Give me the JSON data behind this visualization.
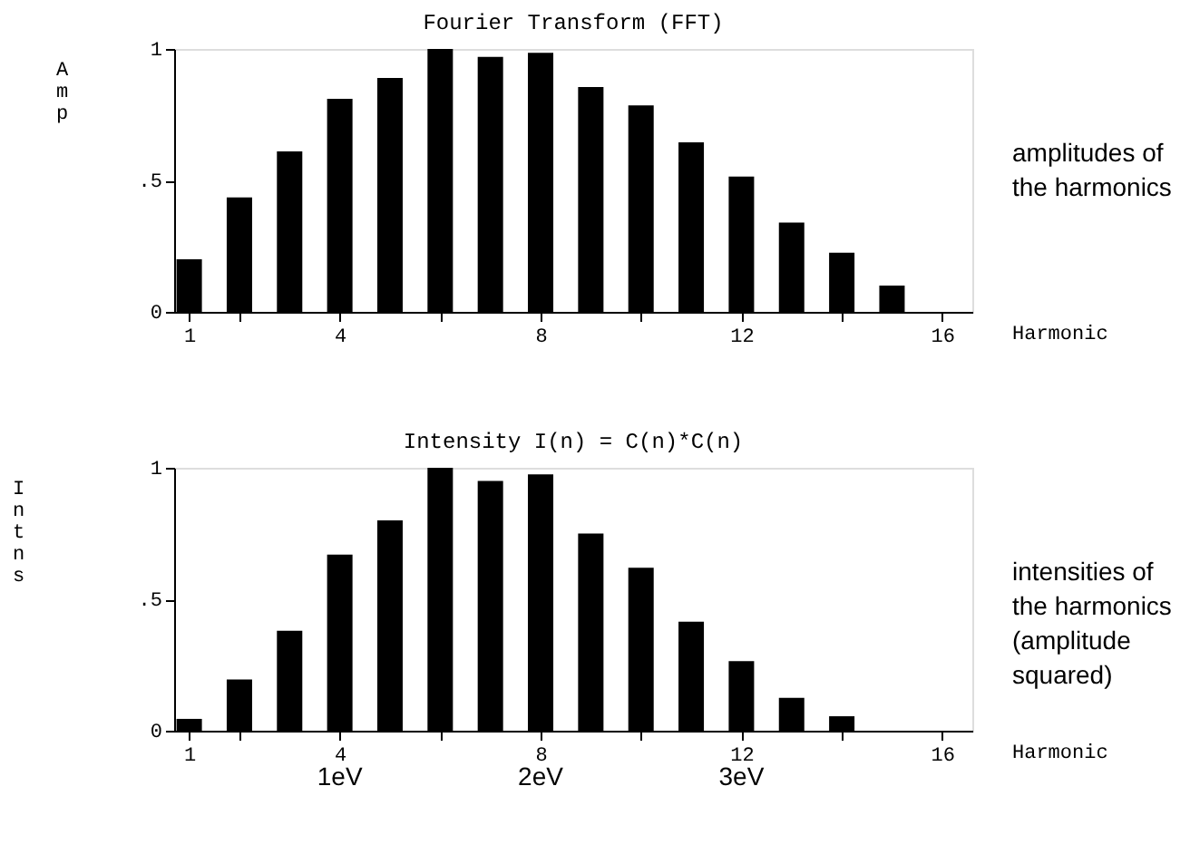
{
  "chart_data": [
    {
      "type": "bar",
      "title": "Fourier Transform  (FFT)",
      "xlabel": "Harmonic",
      "ylabel": "Amp",
      "color": "#000000",
      "x": [
        1,
        2,
        3,
        4,
        5,
        6,
        7,
        8,
        9,
        10,
        11,
        12,
        13,
        14,
        15
      ],
      "values": [
        0.2,
        0.435,
        0.61,
        0.81,
        0.89,
        1.0,
        0.97,
        0.985,
        0.855,
        0.785,
        0.645,
        0.515,
        0.34,
        0.225,
        0.1
      ],
      "xlim": [
        0.7,
        16.6
      ],
      "xticks": [
        1,
        {
          "value": 2,
          "label": null
        },
        4,
        {
          "value": 6,
          "label": null
        },
        8,
        {
          "value": 10,
          "label": null
        },
        12,
        {
          "value": 14,
          "label": null
        },
        16
      ],
      "ylim": [
        0,
        1
      ],
      "yticks": [
        0,
        {
          "value": 0.5,
          "label": ".5"
        },
        1
      ],
      "grid": false,
      "annotations": [
        "amplitudes of the harmonics"
      ]
    },
    {
      "type": "bar",
      "title": "Intensity I(n) = C(n)*C(n)",
      "xlabel": "Harmonic",
      "ylabel": "Intns",
      "color": "#000000",
      "x": [
        1,
        2,
        3,
        4,
        5,
        6,
        7,
        8,
        9,
        10,
        11,
        12,
        13,
        14
      ],
      "values": [
        0.045,
        0.195,
        0.38,
        0.67,
        0.8,
        1.0,
        0.95,
        0.975,
        0.75,
        0.62,
        0.415,
        0.265,
        0.125,
        0.055
      ],
      "xlim": [
        0.7,
        16.6
      ],
      "xticks": [
        1,
        {
          "value": 2,
          "label": null
        },
        4,
        {
          "value": 6,
          "label": null
        },
        8,
        {
          "value": 10,
          "label": null
        },
        12,
        {
          "value": 14,
          "label": null
        },
        16
      ],
      "ylim": [
        0,
        1
      ],
      "yticks": [
        0,
        {
          "value": 0.5,
          "label": ".5"
        },
        1
      ],
      "grid": false,
      "annotations": [
        "intensities of the harmonics (amplitude squared)",
        "1eV",
        "2eV",
        "3eV"
      ]
    }
  ]
}
